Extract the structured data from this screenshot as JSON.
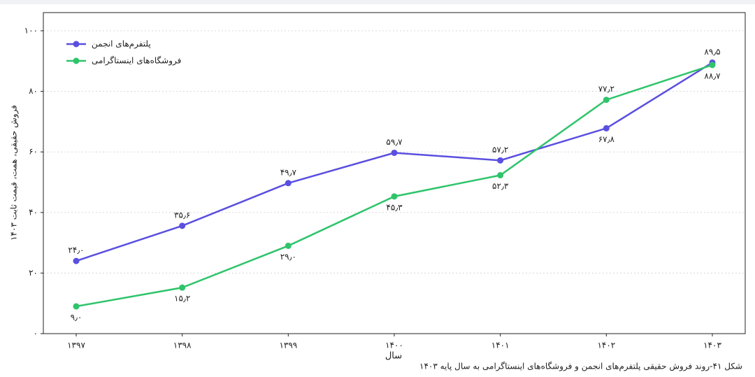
{
  "chart_data": {
    "type": "line",
    "caption": "شکل ۴۱-روند فروش حقیقی پلتفرم‌های انجمن و فروشگاه‌های اینستاگرامی به سال پایه ۱۴۰۳",
    "x_label": "سال",
    "y_label": "فروش حقیقی، همت، قیمت ثابت ۱۴۰۳",
    "categories": [
      "۱۳۹۷",
      "۱۳۹۸",
      "۱۳۹۹",
      "۱۴۰۰",
      "۱۴۰۱",
      "۱۴۰۲",
      "۱۴۰۳"
    ],
    "series": [
      {
        "name": "پلتفرم‌های انجمن",
        "color": "#5a4fe0",
        "values": [
          24.0,
          35.6,
          49.7,
          59.7,
          57.2,
          67.8,
          89.5
        ],
        "value_labels": [
          "۲۴٫۰",
          "۳۵٫۶",
          "۴۹٫۷",
          "۵۹٫۷",
          "۵۷٫۲",
          "۶۷٫۸",
          "۸۹٫۵"
        ]
      },
      {
        "name": "فروشگاه‌های اینستاگرامی",
        "color": "#2fc46b",
        "values": [
          9.0,
          15.2,
          29.0,
          45.3,
          52.3,
          77.2,
          88.7
        ],
        "value_labels": [
          "۹٫۰",
          "۱۵٫۲",
          "۲۹٫۰",
          "۴۵٫۳",
          "۵۲٫۳",
          "۷۷٫۲",
          "۸۸٫۷"
        ]
      }
    ],
    "ylim": [
      0,
      106
    ],
    "yticks": [
      {
        "value": 0,
        "label": "۰"
      },
      {
        "value": 20,
        "label": "۲۰"
      },
      {
        "value": 40,
        "label": "۴۰"
      },
      {
        "value": 60,
        "label": "۶۰"
      },
      {
        "value": 80,
        "label": "۸۰"
      },
      {
        "value": 100,
        "label": "۱۰۰"
      }
    ],
    "grid": true,
    "legend": "top-left"
  }
}
